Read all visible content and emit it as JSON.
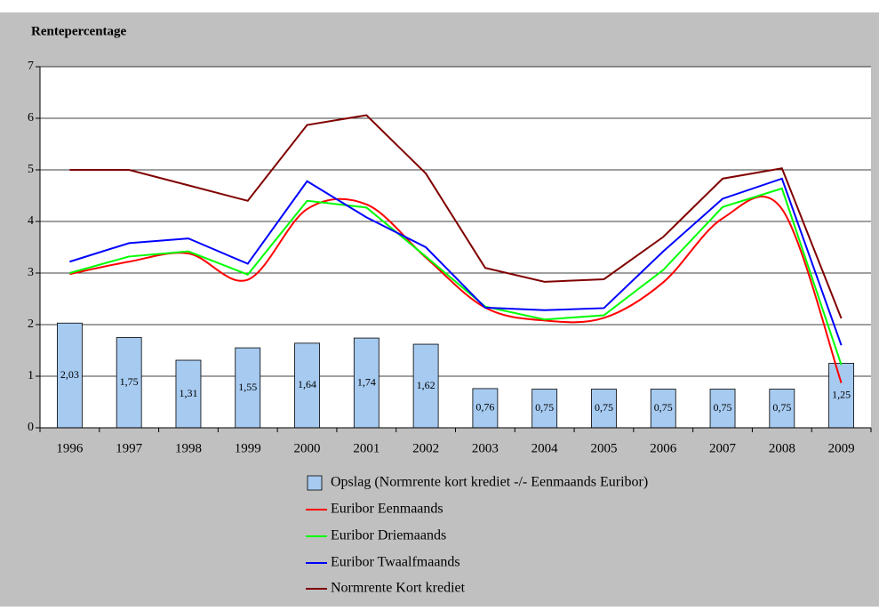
{
  "chart_data": {
    "type": "bar-line",
    "y_label": "Rentepercentage",
    "categories": [
      "1996",
      "1997",
      "1998",
      "1999",
      "2000",
      "2001",
      "2002",
      "2003",
      "2004",
      "2005",
      "2006",
      "2007",
      "2008",
      "2009"
    ],
    "ylim": [
      0,
      7
    ],
    "yticks": [
      0,
      1,
      2,
      3,
      4,
      5,
      6,
      7
    ],
    "grid": true,
    "legend": "bottom",
    "bars": {
      "name": "Opslag (Normrente kort krediet -/- Eenmaands Euribor)",
      "color": "#a6caf0",
      "values": [
        2.03,
        1.75,
        1.31,
        1.55,
        1.64,
        1.74,
        1.62,
        0.76,
        0.75,
        0.75,
        0.75,
        0.75,
        0.75,
        1.25
      ],
      "value_labels": [
        "2,03",
        "1,75",
        "1,31",
        "1,55",
        "1,64",
        "1,74",
        "1,62",
        "0,76",
        "0,75",
        "0,75",
        "0,75",
        "0,75",
        "0,75",
        "1,25"
      ]
    },
    "series": [
      {
        "name": "Euribor Eenmaands",
        "color": "#ff0000",
        "smooth": true,
        "values": [
          2.98,
          3.22,
          3.38,
          2.87,
          4.24,
          4.33,
          3.3,
          2.33,
          2.08,
          2.13,
          2.82,
          4.06,
          4.24,
          0.87
        ]
      },
      {
        "name": "Euribor Driemaands",
        "color": "#00ff00",
        "smooth": false,
        "values": [
          3.0,
          3.32,
          3.42,
          2.97,
          4.4,
          4.27,
          3.32,
          2.35,
          2.1,
          2.18,
          3.06,
          4.28,
          4.64,
          1.22
        ]
      },
      {
        "name": "Euribor Twaalfmaands",
        "color": "#0000ff",
        "smooth": false,
        "values": [
          3.22,
          3.58,
          3.67,
          3.18,
          4.78,
          4.08,
          3.5,
          2.33,
          2.28,
          2.32,
          3.42,
          4.44,
          4.83,
          1.6
        ]
      },
      {
        "name": "Normrente Kort krediet",
        "color": "#800000",
        "smooth": false,
        "values": [
          5.0,
          5.0,
          4.7,
          4.4,
          5.87,
          6.06,
          4.93,
          3.1,
          2.83,
          2.88,
          3.7,
          4.83,
          5.03,
          2.12
        ]
      }
    ]
  }
}
